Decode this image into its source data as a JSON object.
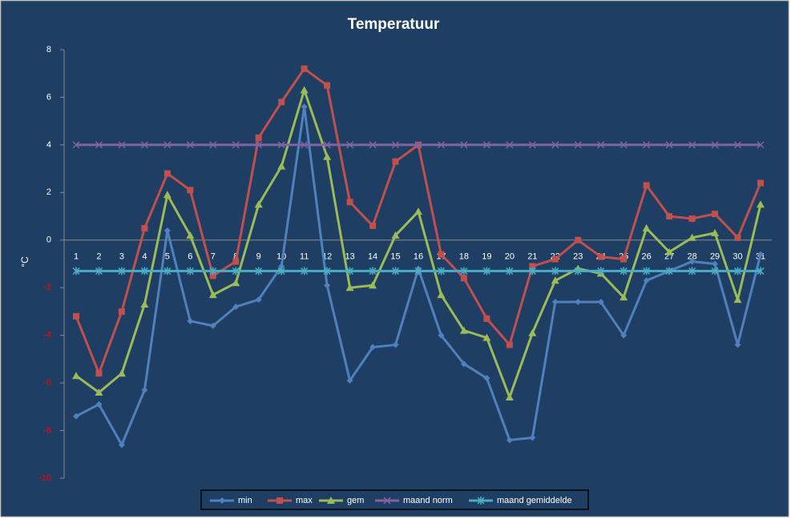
{
  "chart_data": {
    "type": "line",
    "title": "Temperatuur",
    "y_label": "°C",
    "categories": [
      "1",
      "2",
      "3",
      "4",
      "5",
      "6",
      "7",
      "8",
      "9",
      "10",
      "11",
      "12",
      "13",
      "14",
      "15",
      "16",
      "17",
      "18",
      "19",
      "20",
      "21",
      "22",
      "23",
      "24",
      "25",
      "26",
      "27",
      "28",
      "29",
      "30",
      "31"
    ],
    "series": [
      {
        "name": "min",
        "color": "#4f81bd",
        "marker": "diamond",
        "values": [
          -7.4,
          -6.9,
          -8.6,
          -6.3,
          0.4,
          -3.4,
          -3.6,
          -2.8,
          -2.5,
          -1.1,
          5.6,
          -1.9,
          -5.9,
          -4.5,
          -4.4,
          -1.2,
          -4.0,
          -5.2,
          -5.8,
          -8.4,
          -8.3,
          -2.6,
          -2.6,
          -2.6,
          -4.0,
          -1.7,
          -1.3,
          -0.9,
          -1.0,
          -4.4,
          -0.6
        ]
      },
      {
        "name": "max",
        "color": "#c0504d",
        "marker": "square",
        "values": [
          -3.2,
          -5.6,
          -3.0,
          0.5,
          2.8,
          2.1,
          -1.5,
          -0.9,
          4.3,
          5.8,
          7.2,
          6.5,
          1.6,
          0.6,
          3.3,
          4.0,
          -0.6,
          -1.6,
          -3.3,
          -4.4,
          -1.1,
          -0.8,
          0.0,
          -0.7,
          -0.8,
          2.3,
          1.0,
          0.9,
          1.1,
          0.1,
          2.4
        ]
      },
      {
        "name": "gem",
        "color": "#9bbb59",
        "marker": "triangle",
        "values": [
          -5.7,
          -6.4,
          -5.6,
          -2.7,
          1.9,
          0.2,
          -2.3,
          -1.8,
          1.5,
          3.1,
          6.3,
          3.5,
          -2.0,
          -1.9,
          0.2,
          1.2,
          -2.3,
          -3.8,
          -4.1,
          -6.6,
          -3.9,
          -1.7,
          -1.2,
          -1.4,
          -2.4,
          0.5,
          -0.5,
          0.1,
          0.3,
          -2.5,
          1.5
        ]
      },
      {
        "name": "maand norm",
        "color": "#8064a2",
        "marker": "x",
        "values": [
          4,
          4,
          4,
          4,
          4,
          4,
          4,
          4,
          4,
          4,
          4,
          4,
          4,
          4,
          4,
          4,
          4,
          4,
          4,
          4,
          4,
          4,
          4,
          4,
          4,
          4,
          4,
          4,
          4,
          4,
          4
        ]
      },
      {
        "name": "maand gemiddelde",
        "color": "#4bacc6",
        "marker": "star",
        "values": [
          -1.3,
          -1.3,
          -1.3,
          -1.3,
          -1.3,
          -1.3,
          -1.3,
          -1.3,
          -1.3,
          -1.3,
          -1.3,
          -1.3,
          -1.3,
          -1.3,
          -1.3,
          -1.3,
          -1.3,
          -1.3,
          -1.3,
          -1.3,
          -1.3,
          -1.3,
          -1.3,
          -1.3,
          -1.3,
          -1.3,
          -1.3,
          -1.3,
          -1.3,
          -1.3,
          -1.3
        ]
      }
    ],
    "ylim": [
      -10,
      8
    ],
    "yticks": [
      -10,
      -8,
      -6,
      -4,
      -2,
      0,
      2,
      4,
      6,
      8
    ],
    "negative_tick_color": "#ff0000",
    "grid": false,
    "legend": "bottom"
  }
}
